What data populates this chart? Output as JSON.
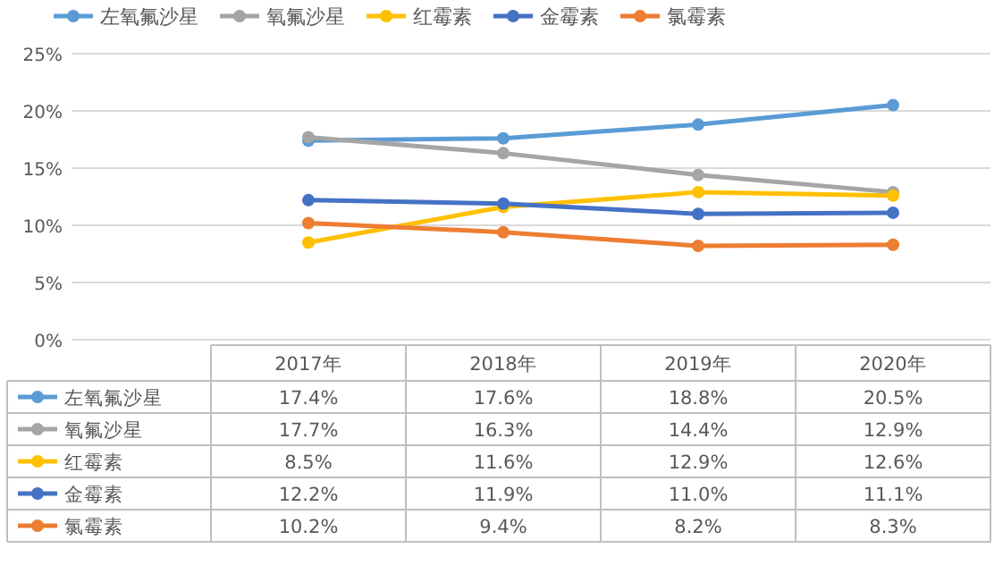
{
  "chart_data": {
    "type": "line",
    "categories": [
      "2017年",
      "2018年",
      "2019年",
      "2020年"
    ],
    "series": [
      {
        "name": "左氧氟沙星",
        "color": "#5b9bd5",
        "values": [
          17.4,
          17.6,
          18.8,
          20.5
        ],
        "value_labels": [
          "17.4%",
          "17.6%",
          "18.8%",
          "20.5%"
        ]
      },
      {
        "name": "氧氟沙星",
        "color": "#a5a5a5",
        "values": [
          17.7,
          16.3,
          14.4,
          12.9
        ],
        "value_labels": [
          "17.7%",
          "16.3%",
          "14.4%",
          "12.9%"
        ]
      },
      {
        "name": "红霉素",
        "color": "#ffc000",
        "values": [
          8.5,
          11.6,
          12.9,
          12.6
        ],
        "value_labels": [
          "8.5%",
          "11.6%",
          "12.9%",
          "12.6%"
        ]
      },
      {
        "name": "金霉素",
        "color": "#4472c4",
        "values": [
          12.2,
          11.9,
          11.0,
          11.1
        ],
        "value_labels": [
          "12.2%",
          "11.9%",
          "11.0%",
          "11.1%"
        ]
      },
      {
        "name": "氯霉素",
        "color": "#ed7d31",
        "values": [
          10.2,
          9.4,
          8.2,
          8.3
        ],
        "value_labels": [
          "10.2%",
          "9.4%",
          "8.2%",
          "8.3%"
        ]
      }
    ],
    "ylim": [
      0,
      25
    ],
    "yticks": [
      {
        "value": 0,
        "label": "0%"
      },
      {
        "value": 5,
        "label": "5%"
      },
      {
        "value": 10,
        "label": "10%"
      },
      {
        "value": 15,
        "label": "15%"
      },
      {
        "value": 20,
        "label": "20%"
      },
      {
        "value": 25,
        "label": "25%"
      }
    ],
    "grid": "y",
    "legend": "top",
    "marker": "circle",
    "line_style": "solid"
  }
}
